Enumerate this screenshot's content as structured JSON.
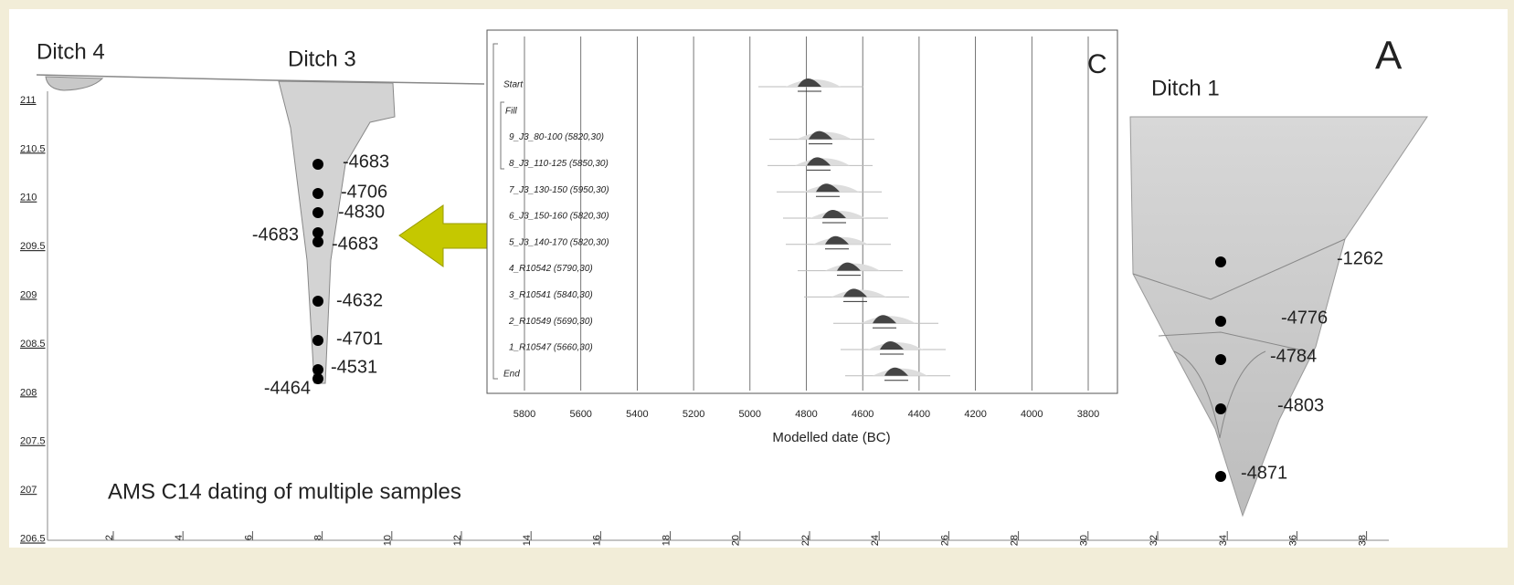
{
  "title": "AMS C14 dating of multiple samples",
  "panel_label": "A",
  "ditches": [
    "Ditch 4",
    "Ditch 3",
    "Ditch 1"
  ],
  "left_axis": {
    "ticks": [
      "211",
      "210.5",
      "210",
      "209.5",
      "209",
      "208.5",
      "208",
      "207.5",
      "207",
      "206.5"
    ]
  },
  "bottom_axis": {
    "ticks": [
      "2",
      "4",
      "6",
      "8",
      "10",
      "12",
      "14",
      "16",
      "18",
      "20",
      "22",
      "24",
      "26",
      "28",
      "30",
      "32",
      "34",
      "36",
      "38"
    ]
  },
  "ditch3_samples": [
    "-4683",
    "-4706",
    "-4830",
    "-4683",
    "-4683",
    "-4632",
    "-4701",
    "-4531",
    "-4464"
  ],
  "ditch1_samples": [
    "-1262",
    "-4776",
    "-4784",
    "-4803",
    "-4871"
  ],
  "inset": {
    "label": "C",
    "x_label": "Modelled date (BC)",
    "x_ticks": [
      "5800",
      "5600",
      "5400",
      "5200",
      "5000",
      "4800",
      "4600",
      "4400",
      "4200",
      "4000",
      "3800"
    ],
    "rows": [
      "Start",
      "Fill",
      "9_J3_80-100 (5820,30)",
      "8_J3_110-125 (5850,30)",
      "7_J3_130-150 (5950,30)",
      "6_J3_150-160 (5820,30)",
      "5_J3_140-170 (5820,30)",
      "4_R10542 (5790,30)",
      "3_R10541 (5840,30)",
      "2_R10549 (5690,30)",
      "1_R10547 (5660,30)",
      "End"
    ]
  }
}
